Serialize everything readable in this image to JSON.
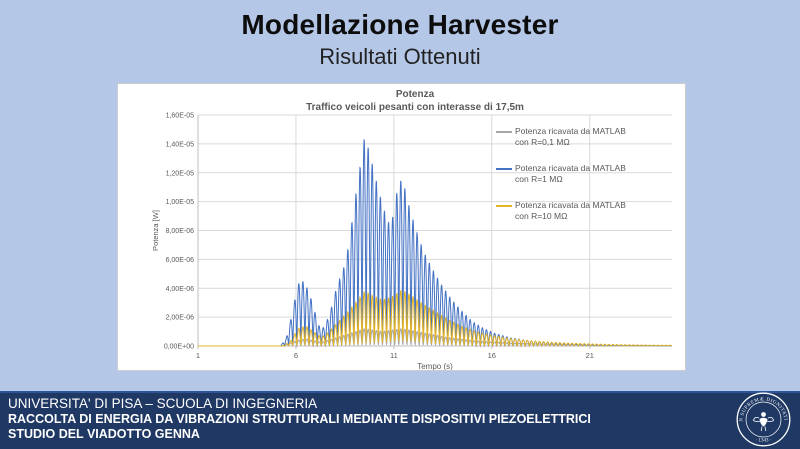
{
  "slide": {
    "title": "Modellazione Harvester",
    "subtitle": "Risultati Ottenuti",
    "background_color": "#b4c7e7"
  },
  "chart_data": {
    "type": "line",
    "title": "Potenza",
    "subtitle": "Traffico veicoli pesanti con interasse di 17,5m",
    "xlabel": "Tempo (s)",
    "ylabel": "Potenza [W]",
    "xlim": [
      1,
      25.2
    ],
    "ylim": [
      0,
      1.6e-05
    ],
    "grid": true,
    "legend_position": "inside-right",
    "x_ticks": [
      {
        "label": "1",
        "value": 1
      },
      {
        "label": "6",
        "value": 6
      },
      {
        "label": "11",
        "value": 11
      },
      {
        "label": "16",
        "value": 16
      },
      {
        "label": "21",
        "value": 21
      }
    ],
    "x_gridlines": [
      6,
      11,
      16,
      21
    ],
    "y_ticks": [
      {
        "label": "0,00E+00",
        "value": 0
      },
      {
        "label": "2,00E-06",
        "value": 2e-06
      },
      {
        "label": "4,00E-06",
        "value": 4e-06
      },
      {
        "label": "6,00E-06",
        "value": 6e-06
      },
      {
        "label": "8,00E-06",
        "value": 8e-06
      },
      {
        "label": "1,00E-05",
        "value": 1e-05
      },
      {
        "label": "1,20E-05",
        "value": 1.2e-05
      },
      {
        "label": "1,40E-05",
        "value": 1.4e-05
      },
      {
        "label": "1,60E-05",
        "value": 1.6e-05
      }
    ],
    "colors": {
      "gridline": "#d9d9d9",
      "axis": "#bfbfbf",
      "text": "#595959",
      "background": "#ffffff"
    },
    "signal": {
      "description": "Spiky oscillating power signals; each series is the envelope of |sin| oscillations (envelope points are [time_s, peak_power_W])",
      "oscillation_hz": 2.4
    },
    "series": [
      {
        "name": "Potenza ricavata da MATLAB con R=0,1 MΩ",
        "label_lines": [
          "Potenza ricavata da MATLAB",
          "con R=0,1 MΩ"
        ],
        "color": "#A6A6A6",
        "envelope": [
          [
            1,
            0
          ],
          [
            5.3,
            0
          ],
          [
            6.1,
            4e-07
          ],
          [
            6.5,
            5e-07
          ],
          [
            7.3,
            2.5e-07
          ],
          [
            8.6,
            8e-07
          ],
          [
            9.5,
            1.2e-06
          ],
          [
            10.4,
            1e-06
          ],
          [
            11.4,
            1.2e-06
          ],
          [
            12.4,
            9.5e-07
          ],
          [
            13.7,
            6e-07
          ],
          [
            15.2,
            3.5e-07
          ],
          [
            17,
            2e-07
          ],
          [
            19,
            1.2e-07
          ],
          [
            21,
            7e-08
          ],
          [
            23,
            4e-08
          ],
          [
            25.2,
            2e-08
          ]
        ]
      },
      {
        "name": "Potenza ricavata da MATLAB con R=1 MΩ",
        "label_lines": [
          "Potenza ricavata da MATLAB",
          "con R=1 MΩ"
        ],
        "color": "#4472C4",
        "envelope": [
          [
            1,
            0
          ],
          [
            5.2,
            0
          ],
          [
            5.5,
            5e-07
          ],
          [
            5.8,
            2.2e-06
          ],
          [
            6.1,
            4.3e-06
          ],
          [
            6.4,
            4.5e-06
          ],
          [
            6.7,
            3.6e-06
          ],
          [
            7,
            2.2e-06
          ],
          [
            7.25,
            1.1e-06
          ],
          [
            7.5,
            1.4e-06
          ],
          [
            7.8,
            2.6e-06
          ],
          [
            8.1,
            4.2e-06
          ],
          [
            8.4,
            5.2e-06
          ],
          [
            8.7,
            7e-06
          ],
          [
            9,
            1e-05
          ],
          [
            9.25,
            1.22e-05
          ],
          [
            9.5,
            1.45e-05
          ],
          [
            9.75,
            1.35e-05
          ],
          [
            10,
            1.2e-05
          ],
          [
            10.3,
            1.04e-05
          ],
          [
            10.6,
            9e-06
          ],
          [
            10.85,
            8.2e-06
          ],
          [
            11.1,
            1.03e-05
          ],
          [
            11.3,
            1.16e-05
          ],
          [
            11.55,
            1.1e-05
          ],
          [
            11.8,
            9.6e-06
          ],
          [
            12.1,
            8.2e-06
          ],
          [
            12.5,
            6.6e-06
          ],
          [
            12.9,
            5.5e-06
          ],
          [
            13.4,
            4.3e-06
          ],
          [
            13.9,
            3.3e-06
          ],
          [
            14.4,
            2.5e-06
          ],
          [
            15,
            1.7e-06
          ],
          [
            15.6,
            1.2e-06
          ],
          [
            16.2,
            8.5e-07
          ],
          [
            17,
            5.5e-07
          ],
          [
            18,
            3.5e-07
          ],
          [
            19,
            2.2e-07
          ],
          [
            20,
            1.5e-07
          ],
          [
            21,
            1e-07
          ],
          [
            22,
            7e-08
          ],
          [
            23,
            5e-08
          ],
          [
            24,
            3.5e-08
          ],
          [
            25.2,
            2.5e-08
          ]
        ]
      },
      {
        "name": "Potenza ricavata da MATLAB con R=10 MΩ",
        "label_lines": [
          "Potenza ricavata da MATLAB",
          "con R=10 MΩ"
        ],
        "color": "#E3B428",
        "envelope": [
          [
            1,
            0
          ],
          [
            5.3,
            0
          ],
          [
            5.7,
            3e-07
          ],
          [
            6.1,
            1.2e-06
          ],
          [
            6.5,
            1.4e-06
          ],
          [
            6.9,
            1e-06
          ],
          [
            7.3,
            6e-07
          ],
          [
            7.7,
            1e-06
          ],
          [
            8.1,
            1.6e-06
          ],
          [
            8.6,
            2.3e-06
          ],
          [
            9.1,
            3.1e-06
          ],
          [
            9.5,
            3.8e-06
          ],
          [
            9.9,
            3.5e-06
          ],
          [
            10.4,
            3.2e-06
          ],
          [
            10.9,
            3.4e-06
          ],
          [
            11.4,
            3.9e-06
          ],
          [
            11.9,
            3.5e-06
          ],
          [
            12.4,
            3e-06
          ],
          [
            13,
            2.5e-06
          ],
          [
            13.7,
            1.9e-06
          ],
          [
            14.4,
            1.4e-06
          ],
          [
            15.2,
            1e-06
          ],
          [
            16,
            7.5e-07
          ],
          [
            17,
            5e-07
          ],
          [
            18,
            3.7e-07
          ],
          [
            19,
            2.7e-07
          ],
          [
            20,
            2e-07
          ],
          [
            21,
            1.5e-07
          ],
          [
            22,
            1.1e-07
          ],
          [
            23,
            8e-08
          ],
          [
            24,
            6e-08
          ],
          [
            25.2,
            5e-08
          ]
        ]
      }
    ]
  },
  "footer": {
    "lines": [
      "UNIVERSITA' DI PISA – SCUOLA DI INGEGNERIA",
      "RACCOLTA DI ENERGIA DA VIBRAZIONI STRUTTURALI MEDIANTE DISPOSITIVI PIEZOELETTRICI",
      "STUDIO DEL VIADOTTO GENNA"
    ],
    "background_color": "#1f3864",
    "seal": {
      "ring_text": "IN SUPREMÆ DIGNITATIS",
      "year": "· 1343 ·"
    }
  }
}
